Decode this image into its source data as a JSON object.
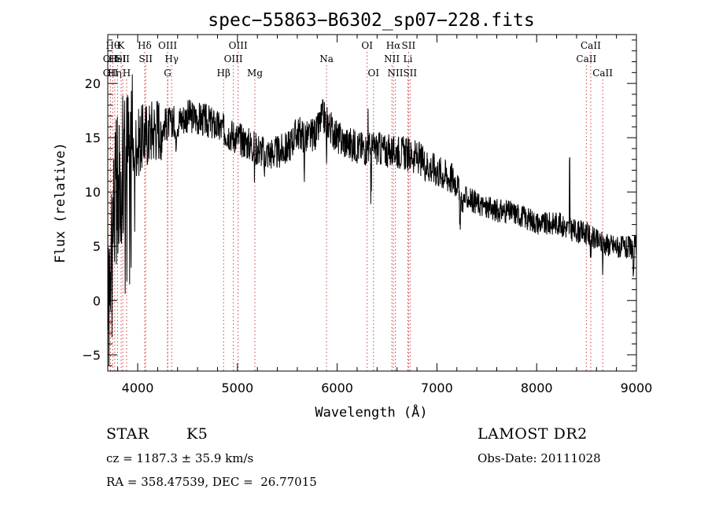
{
  "chart_data": {
    "type": "line",
    "title": "spec−55863−B6302_sp07−228.fits",
    "xlabel": "Wavelength (Å)",
    "ylabel": "Flux (relative)",
    "xlim": [
      3700,
      9000
    ],
    "ylim": [
      -6.5,
      24.5
    ],
    "xticks": [
      4000,
      5000,
      6000,
      7000,
      8000,
      9000
    ],
    "xtick_labels": [
      "4000",
      "5000",
      "6000",
      "7000",
      "8000",
      "9000"
    ],
    "yticks": [
      -5,
      0,
      5,
      10,
      15,
      20
    ],
    "ytick_labels": [
      "−5",
      "0",
      "5",
      "10",
      "15",
      "20"
    ],
    "grid": false,
    "continuum": {
      "x": [
        3700,
        3760,
        3830,
        3900,
        4000,
        4100,
        4200,
        4300,
        4400,
        4500,
        4600,
        4700,
        4800,
        4900,
        5000,
        5100,
        5200,
        5300,
        5400,
        5500,
        5600,
        5700,
        5800,
        5850,
        5900,
        6000,
        6100,
        6200,
        6300,
        6400,
        6500,
        6600,
        6700,
        6800,
        6900,
        7000,
        7100,
        7200,
        7250,
        7300,
        7400,
        7500,
        7600,
        7700,
        7800,
        7900,
        8000,
        8100,
        8200,
        8300,
        8400,
        8500,
        8600,
        8700,
        8800,
        8900,
        9000
      ],
      "y": [
        3,
        9,
        12,
        14,
        14.5,
        15.5,
        16,
        16.3,
        16.5,
        17,
        16.8,
        16.5,
        16,
        15.5,
        15,
        14.5,
        14,
        13.6,
        13.6,
        14,
        15.5,
        15,
        15.5,
        17,
        16.5,
        15,
        14.5,
        14.2,
        14,
        14,
        13.8,
        13.8,
        13.5,
        13.2,
        12.5,
        12,
        11.5,
        11,
        9,
        9.5,
        9,
        8.5,
        8.3,
        8.2,
        8,
        7.6,
        7.2,
        7,
        7.2,
        6.7,
        6.4,
        6.2,
        5.5,
        5.2,
        5,
        4.8,
        5
      ]
    },
    "line_markers": [
      {
        "x": 3727,
        "label": "OII",
        "row": 2
      },
      {
        "x": 3727,
        "label": "OII",
        "row": 3
      },
      {
        "x": 3750,
        "label": "Hθ",
        "row": 1
      },
      {
        "x": 3770,
        "label": "Hη",
        "row": 3
      },
      {
        "x": 3798,
        "label": "HeI",
        "row": 2
      },
      {
        "x": 3834,
        "label": "K",
        "row": 1
      },
      {
        "x": 3850,
        "label": "SII",
        "row": 2
      },
      {
        "x": 3889,
        "label": "H",
        "row": 3
      },
      {
        "x": 4070,
        "label": "Hδ",
        "row": 1
      },
      {
        "x": 4080,
        "label": "SII",
        "row": 2
      },
      {
        "x": 4300,
        "label": "OIII",
        "row": 1
      },
      {
        "x": 4300,
        "label": "G",
        "row": 3
      },
      {
        "x": 4340,
        "label": "Hγ",
        "row": 2
      },
      {
        "x": 4861,
        "label": "Hβ",
        "row": 3
      },
      {
        "x": 4959,
        "label": "OIII",
        "row": 2
      },
      {
        "x": 5007,
        "label": "OIII",
        "row": 1
      },
      {
        "x": 5175,
        "label": "Mg",
        "row": 3
      },
      {
        "x": 5893,
        "label": "Na",
        "row": 2
      },
      {
        "x": 6300,
        "label": "OI",
        "row": 1
      },
      {
        "x": 6364,
        "label": "OI",
        "row": 3
      },
      {
        "x": 6548,
        "label": "NII",
        "row": 2
      },
      {
        "x": 6563,
        "label": "Hα",
        "row": 1
      },
      {
        "x": 6583,
        "label": "NII",
        "row": 3
      },
      {
        "x": 6708,
        "label": "Li",
        "row": 2
      },
      {
        "x": 6716,
        "label": "SII",
        "row": 1
      },
      {
        "x": 6731,
        "label": "SII",
        "row": 3
      },
      {
        "x": 8498,
        "label": "CaII",
        "row": 2
      },
      {
        "x": 8542,
        "label": "CaII",
        "row": 1
      },
      {
        "x": 8662,
        "label": "CaII",
        "row": 3
      }
    ]
  },
  "info": {
    "object_class": "STAR",
    "subclass": "K5",
    "survey": "LAMOST DR2",
    "cz": "cz = 1187.3 ± 35.9 km/s",
    "obs_date": "Obs-Date: 20111028",
    "coords": "RA = 358.47539, DEC =  26.77015"
  },
  "colors": {
    "spectrum": "#000000",
    "markers": "#d04040",
    "axes": "#000000"
  }
}
